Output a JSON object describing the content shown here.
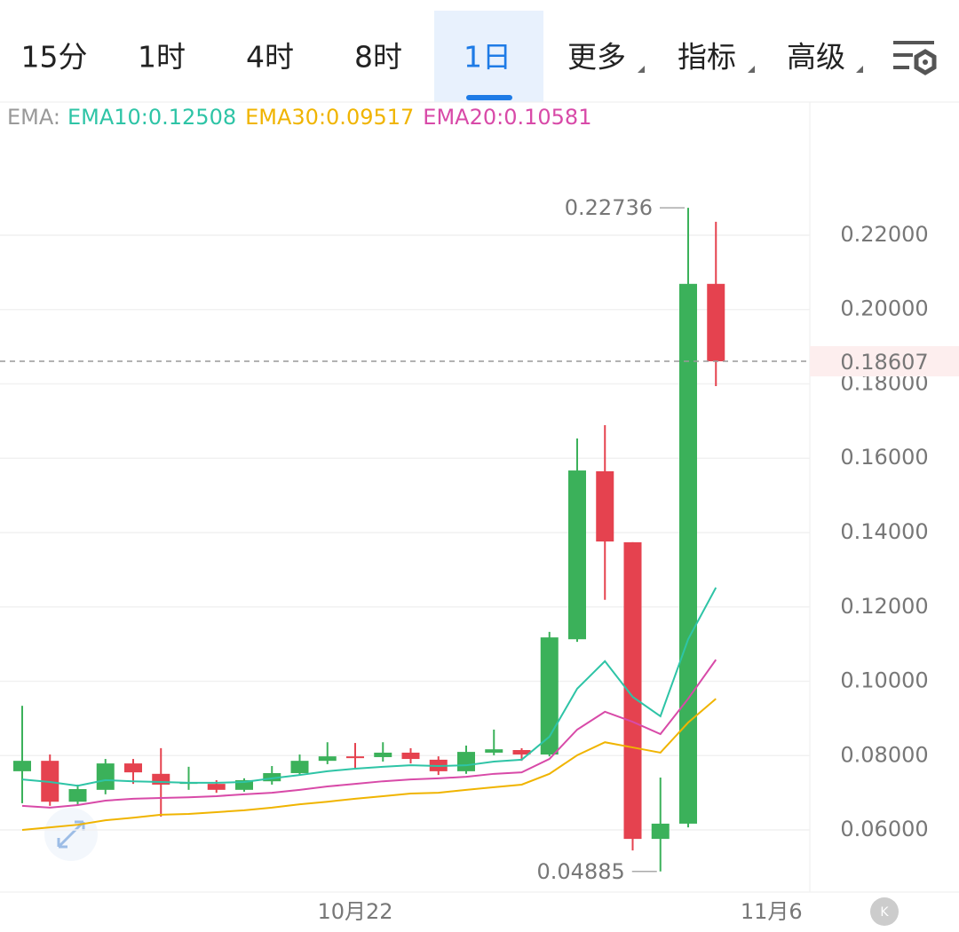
{
  "tabs": [
    "15分",
    "1时",
    "4时",
    "8时",
    "1日",
    "更多",
    "指标",
    "高级"
  ],
  "active_tab": 4,
  "chart_data": {
    "type": "candlestick",
    "ema_label": "EMA:",
    "categories": [
      null,
      null,
      null,
      null,
      null,
      null,
      null,
      null,
      null,
      null,
      null,
      null,
      "10月22",
      null,
      null,
      null,
      null,
      null,
      null,
      null,
      null,
      null,
      null,
      null,
      null,
      null,
      null,
      "11月6"
    ],
    "open": [
      0.0758,
      0.0786,
      0.0676,
      0.0708,
      0.0779,
      0.0751,
      0.0724,
      0.0724,
      0.0708,
      0.0731,
      0.0753,
      0.0786,
      0.0798,
      0.0796,
      0.0808,
      0.0789,
      0.0758,
      0.0808,
      0.0815,
      0.0803,
      0.1113,
      0.1565,
      0.1374,
      0.0576,
      0.0617,
      0.2069,
      null,
      null
    ],
    "high": [
      0.0934,
      0.0803,
      0.0722,
      0.0791,
      0.0791,
      0.082,
      0.077,
      0.0734,
      0.0739,
      0.0772,
      0.0803,
      0.0836,
      0.0834,
      0.0836,
      0.082,
      0.0798,
      0.0827,
      0.087,
      0.082,
      0.1133,
      0.1653,
      0.1689,
      0.1374,
      0.0741,
      0.22736,
      0.2236,
      null,
      null
    ],
    "low": [
      0.0672,
      0.0665,
      0.0665,
      0.0696,
      0.0724,
      0.0636,
      0.0708,
      0.07,
      0.0703,
      0.0722,
      0.0748,
      0.0777,
      0.0765,
      0.0784,
      0.0779,
      0.0748,
      0.0751,
      0.0801,
      0.0786,
      0.0798,
      0.1106,
      0.1219,
      0.0545,
      0.04885,
      0.0607,
      0.1794,
      null,
      null
    ],
    "close": [
      0.0786,
      0.0676,
      0.071,
      0.0779,
      0.0755,
      0.0722,
      0.0729,
      0.0708,
      0.0734,
      0.0753,
      0.0786,
      0.0798,
      0.0796,
      0.0808,
      0.0791,
      0.0758,
      0.081,
      0.0817,
      0.0803,
      0.1118,
      0.1567,
      0.1376,
      0.0576,
      0.0617,
      0.2069,
      0.18607,
      null,
      null
    ],
    "up_color": "#3bb15a",
    "down_color": "#e5424f",
    "series": [
      {
        "name": "EMA10:0.12508",
        "color": "#2ec4a6",
        "values": [
          0.0736,
          0.0729,
          0.0719,
          0.0734,
          0.0731,
          0.0729,
          0.0727,
          0.0727,
          0.0729,
          0.0739,
          0.0748,
          0.0758,
          0.0765,
          0.077,
          0.0774,
          0.0772,
          0.0774,
          0.0784,
          0.0789,
          0.0851,
          0.098,
          0.1054,
          0.0958,
          0.0906,
          0.1113,
          0.1252,
          null,
          null
        ]
      },
      {
        "name": "EMA30:0.09517",
        "color": "#f0b400",
        "values": [
          0.06,
          0.0607,
          0.0614,
          0.0626,
          0.0633,
          0.0641,
          0.0643,
          0.0648,
          0.0653,
          0.066,
          0.0669,
          0.0676,
          0.0684,
          0.0691,
          0.0698,
          0.07,
          0.0708,
          0.0715,
          0.0722,
          0.0751,
          0.0801,
          0.0836,
          0.0822,
          0.0808,
          0.0889,
          0.0953,
          null,
          null
        ]
      },
      {
        "name": "EMA20:0.10581",
        "color": "#d84aa8",
        "values": [
          0.0665,
          0.066,
          0.0667,
          0.0679,
          0.0684,
          0.0686,
          0.0688,
          0.0691,
          0.0696,
          0.07,
          0.0708,
          0.0717,
          0.0724,
          0.0731,
          0.0736,
          0.0739,
          0.0743,
          0.0751,
          0.0755,
          0.0791,
          0.087,
          0.0918,
          0.0891,
          0.0858,
          0.0953,
          0.1058,
          null,
          null
        ]
      }
    ],
    "ylim": [
      0.0433,
      0.2558
    ],
    "yticks": [
      {
        "value": 0.06,
        "label": "0.06000"
      },
      {
        "value": 0.08,
        "label": "0.08000"
      },
      {
        "value": 0.1,
        "label": "0.10000"
      },
      {
        "value": 0.12,
        "label": "0.12000"
      },
      {
        "value": 0.14,
        "label": "0.14000"
      },
      {
        "value": 0.16,
        "label": "0.16000"
      },
      {
        "value": 0.18,
        "label": "0.18000"
      },
      {
        "value": 0.2,
        "label": "0.20000"
      },
      {
        "value": 0.22,
        "label": "0.22000"
      }
    ],
    "grid": true
  }
}
